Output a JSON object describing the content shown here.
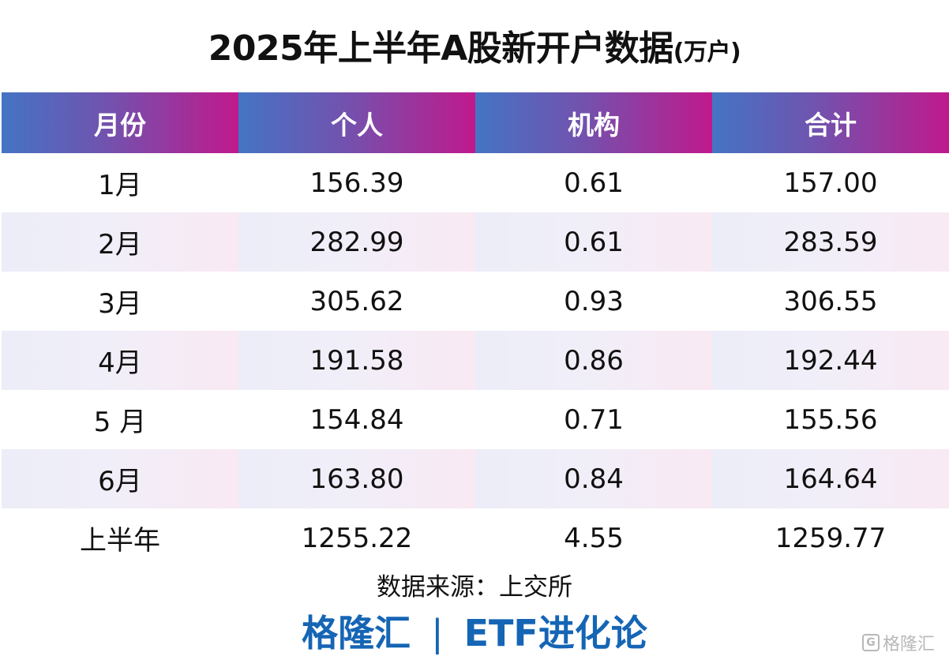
{
  "title": {
    "main": "2025年上半年A股新开户数据",
    "unit": "(万户)"
  },
  "table": {
    "headers": [
      "月份",
      "个人",
      "机构",
      "合计"
    ],
    "rows": [
      [
        "1月",
        "156.39",
        "0.61",
        "157.00"
      ],
      [
        "2月",
        "282.99",
        "0.61",
        "283.59"
      ],
      [
        "3月",
        "305.62",
        "0.93",
        "306.55"
      ],
      [
        "4月",
        "191.58",
        "0.86",
        "192.44"
      ],
      [
        "5 月",
        "154.84",
        "0.71",
        "155.56"
      ],
      [
        "6月",
        "163.80",
        "0.84",
        "164.64"
      ],
      [
        "上半年",
        "1255.22",
        "4.55",
        "1259.77"
      ]
    ]
  },
  "source": "数据来源：上交所",
  "brand": {
    "left": "格隆汇",
    "separator": "|",
    "right": "ETF进化论"
  },
  "watermark": {
    "mark": "G",
    "text": "格隆汇"
  },
  "colors": {
    "header_gradient_start": "#4474c4",
    "header_gradient_end": "#c0198c",
    "brand_blue": "#1565b5",
    "row_shade": "#f1eef8"
  }
}
